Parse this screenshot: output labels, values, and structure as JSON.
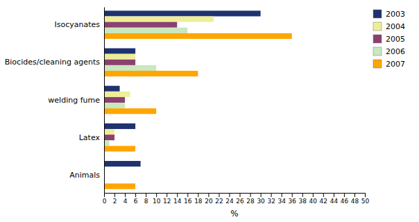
{
  "chart_data": {
    "type": "bar",
    "orientation": "horizontal",
    "categories": [
      "Animals",
      "Latex",
      "welding fume",
      "Biocides/cleaning agents",
      "Isocyanates"
    ],
    "series": [
      {
        "name": "2003",
        "color": "#1F3270",
        "values": [
          7,
          6,
          3,
          6,
          30
        ]
      },
      {
        "name": "2004",
        "color": "#EEEE99",
        "values": [
          0,
          2,
          5,
          6,
          21
        ]
      },
      {
        "name": "2005",
        "color": "#8B4070",
        "values": [
          0,
          2,
          4,
          6,
          14
        ]
      },
      {
        "name": "2006",
        "color": "#C8E8C0",
        "values": [
          0,
          1,
          4,
          10,
          16
        ]
      },
      {
        "name": "2007",
        "color": "#FFA500",
        "values": [
          6,
          6,
          10,
          18,
          36
        ]
      }
    ],
    "xlabel": "%",
    "xlim": [
      0,
      50
    ],
    "xticks": [
      0,
      2,
      4,
      6,
      8,
      10,
      12,
      14,
      16,
      18,
      20,
      22,
      24,
      26,
      28,
      30,
      32,
      34,
      36,
      38,
      40,
      42,
      44,
      46,
      48,
      50
    ],
    "grid": false,
    "legend": "right"
  }
}
